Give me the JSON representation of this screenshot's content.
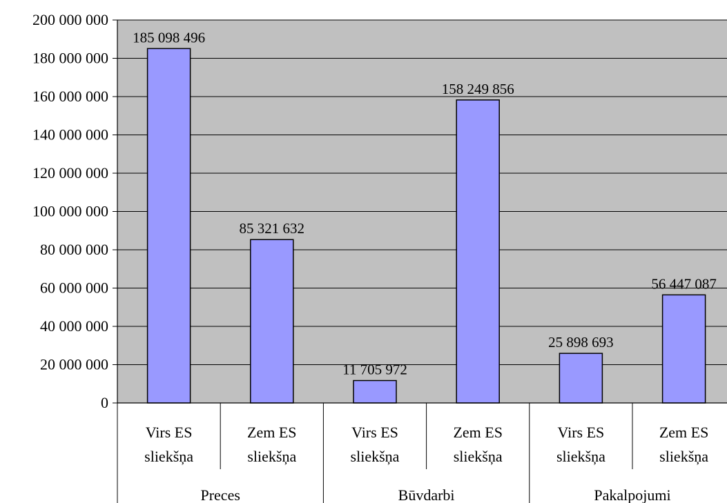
{
  "chart_data": {
    "type": "bar",
    "categories": [
      {
        "line1": "Virs ES",
        "line2": "sliekšņa"
      },
      {
        "line1": "Zem ES",
        "line2": "sliekšņa"
      },
      {
        "line1": "Virs ES",
        "line2": "sliekšņa"
      },
      {
        "line1": "Zem ES",
        "line2": "sliekšņa"
      },
      {
        "line1": "Virs ES",
        "line2": "sliekšņa"
      },
      {
        "line1": "Zem ES",
        "line2": "sliekšņa"
      }
    ],
    "groups": [
      "Preces",
      "Būvdarbi",
      "Pakalpojumi"
    ],
    "values": [
      185098496,
      85321632,
      11705972,
      158249856,
      25898693,
      56447087
    ],
    "value_labels": [
      "185 098 496",
      "85 321 632",
      "11 705 972",
      "158 249 856",
      "25 898 693",
      "56 447 087"
    ],
    "yticks": [
      {
        "value": 0,
        "label": "0"
      },
      {
        "value": 20000000,
        "label": "20 000 000"
      },
      {
        "value": 40000000,
        "label": "40 000 000"
      },
      {
        "value": 60000000,
        "label": "60 000 000"
      },
      {
        "value": 80000000,
        "label": "80 000 000"
      },
      {
        "value": 100000000,
        "label": "100 000 000"
      },
      {
        "value": 120000000,
        "label": "120 000 000"
      },
      {
        "value": 140000000,
        "label": "140 000 000"
      },
      {
        "value": 160000000,
        "label": "160 000 000"
      },
      {
        "value": 180000000,
        "label": "180 000 000"
      },
      {
        "value": 200000000,
        "label": "200 000 000"
      }
    ],
    "ylim": [
      0,
      200000000
    ],
    "grid": true,
    "title": "",
    "xlabel": "",
    "ylabel": "",
    "colors": {
      "plot_background": "#c0c0c0",
      "bar_fill": "#9999ff",
      "bar_stroke": "#000000",
      "gridline": "#000000"
    }
  }
}
